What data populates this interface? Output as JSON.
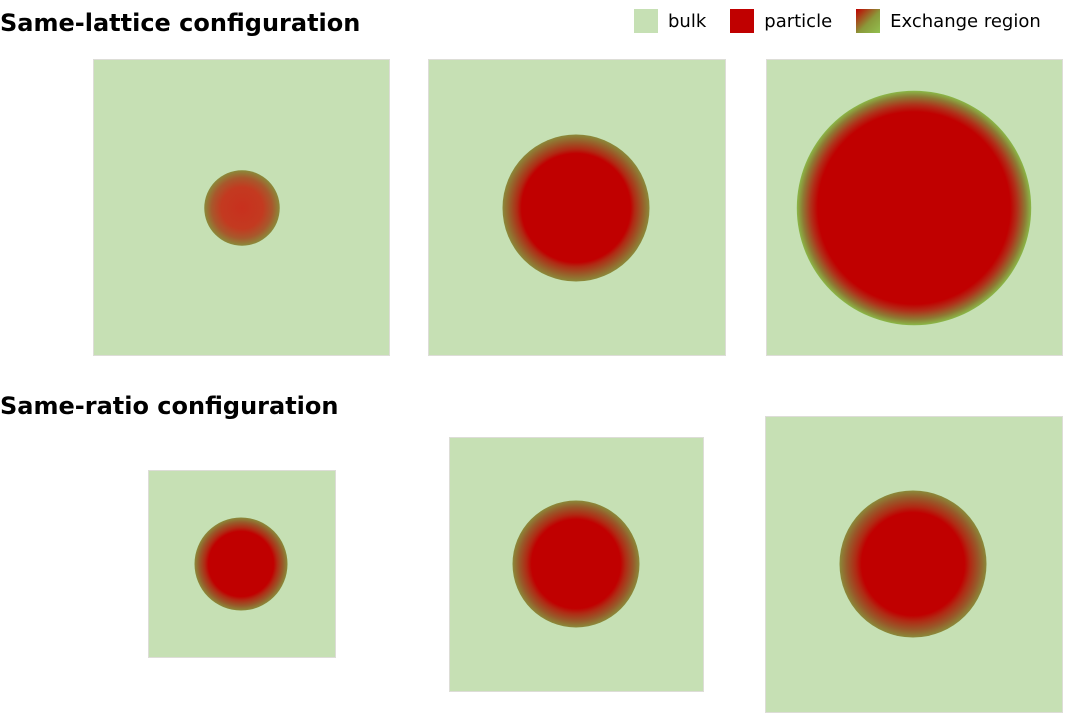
{
  "sections": {
    "top_title": "Same-lattice configuration",
    "bottom_title": "Same-ratio configuration"
  },
  "legend": {
    "bulk": "bulk",
    "particle": "particle",
    "exchange": "Exchange region"
  },
  "colors": {
    "bulk": "#c6e0b4",
    "particle": "#c00000",
    "exchange_outer": "#92c050",
    "exchange_mid": "#8a7a30"
  }
}
